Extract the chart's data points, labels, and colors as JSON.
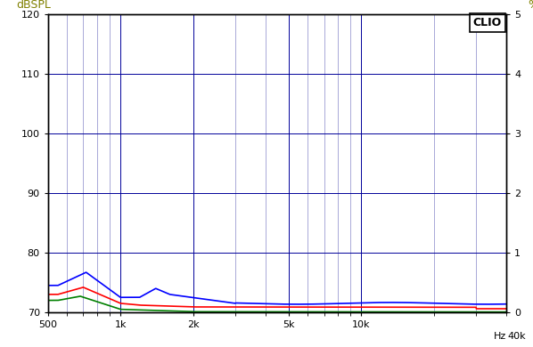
{
  "ylabel_left": "dBSPL",
  "ylabel_right": "%",
  "xlim": [
    500,
    40000
  ],
  "ylim_left": [
    70,
    120
  ],
  "ylim_right": [
    0,
    5
  ],
  "yticks_left": [
    70,
    80,
    90,
    100,
    110,
    120
  ],
  "yticks_right": [
    0,
    1,
    2,
    3,
    4,
    5
  ],
  "xticks_major": [
    500,
    1000,
    2000,
    5000,
    10000
  ],
  "xtick_labels": [
    "500",
    "1k",
    "2k",
    "5k",
    "10k"
  ],
  "background_color": "#ffffff",
  "grid_color_major": "#000099",
  "grid_color_minor": "#4444aa",
  "clio_label": "CLIO",
  "line_colors": [
    "#0000ff",
    "#ff0000",
    "#008000"
  ],
  "line_width": 1.2,
  "label_color": "#808000",
  "figsize": [
    5.98,
    3.9
  ],
  "dpi": 100
}
